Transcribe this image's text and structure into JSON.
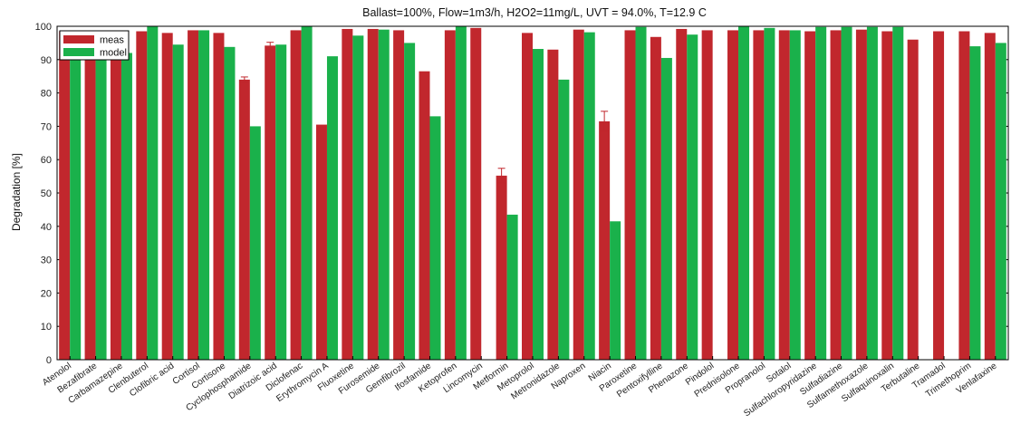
{
  "chart_data": {
    "type": "bar",
    "title": "Ballast=100%, Flow=1m3/h, H2O2=11mg/L, UVT = 94.0%, T=12.9 C",
    "xlabel": "",
    "ylabel": "Degradation [%]",
    "ylim": [
      0,
      100
    ],
    "yticks": [
      0,
      10,
      20,
      30,
      40,
      50,
      60,
      70,
      80,
      90,
      100
    ],
    "grid": false,
    "legend_position": "top-left",
    "categories": [
      "Atenolol",
      "Bezafibrate",
      "Carbamazepine",
      "Clenbuterol",
      "Clofibric acid",
      "Cortisol",
      "Cortisone",
      "Cyclophosphamide",
      "Diatrizoic acid",
      "Diclofenac",
      "Erythromycin A",
      "Fluoxetine",
      "Furosemide",
      "Gemfibrozil",
      "Ifosfamide",
      "Ketoprofen",
      "Lincomycin",
      "Metformin",
      "Metoprolol",
      "Metronidazole",
      "Naproxen",
      "Niacin",
      "Paroxetine",
      "Pentoxifylline",
      "Phenazone",
      "Pindolol",
      "Prednisolone",
      "Propranolol",
      "Sotalol",
      "Sulfachloropyridazine",
      "Sulfadiazine",
      "Sulfamethoxazole",
      "Sulfaquinoxalin",
      "Terbutaline",
      "Tramadol",
      "Trimethoprim",
      "Venlafaxine"
    ],
    "series": [
      {
        "name": "meas",
        "color": "#c1272d",
        "values": [
          98.5,
          98.5,
          98.5,
          98.5,
          98.0,
          98.8,
          98.0,
          84.0,
          94.2,
          98.8,
          70.5,
          99.2,
          99.2,
          98.8,
          86.5,
          98.8,
          99.5,
          55.2,
          98.0,
          93.0,
          99.0,
          71.5,
          98.8,
          96.8,
          99.2,
          98.8,
          98.8,
          98.8,
          98.8,
          98.5,
          98.8,
          99.0,
          98.5,
          96.0,
          98.5,
          98.5,
          98.0
        ],
        "errors": [
          0,
          0,
          0,
          0,
          0,
          0,
          0,
          0.8,
          1.0,
          0,
          0,
          0,
          0,
          0,
          0,
          0,
          0,
          2.2,
          0,
          0,
          0,
          3.0,
          0,
          0,
          0,
          0,
          0,
          0,
          0,
          0,
          0,
          0,
          0,
          0,
          0,
          0,
          0
        ]
      },
      {
        "name": "model",
        "color": "#1ab14b",
        "values": [
          92.0,
          92.0,
          92.0,
          100.0,
          94.5,
          98.8,
          93.8,
          70.0,
          94.5,
          100.0,
          91.0,
          97.2,
          99.0,
          95.0,
          73.0,
          100.0,
          0,
          43.5,
          93.2,
          84.0,
          98.2,
          41.5,
          99.8,
          90.5,
          97.5,
          0,
          100.0,
          99.5,
          98.8,
          99.8,
          99.8,
          99.8,
          99.8,
          0,
          0,
          94.0,
          95.0
        ]
      }
    ]
  }
}
